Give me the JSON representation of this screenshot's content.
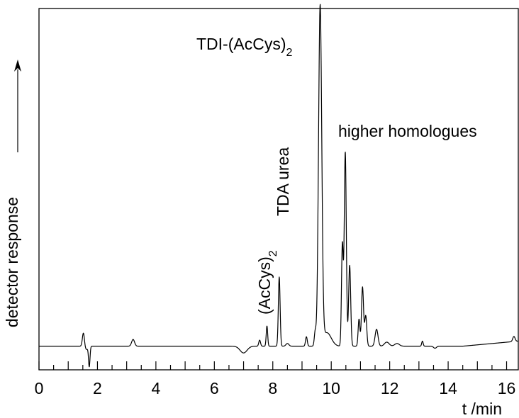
{
  "chart_data": {
    "type": "line",
    "title": "",
    "xlabel": "t /min",
    "ylabel": "detector response",
    "xlim": [
      0,
      16.4
    ],
    "ylim": [
      -0.07,
      1.0
    ],
    "xticks": [
      0,
      2,
      4,
      6,
      8,
      10,
      12,
      14,
      16
    ],
    "xtick_labels": [
      "0",
      "2",
      "4",
      "6",
      "8",
      "10",
      "12",
      "14",
      "16"
    ],
    "y_axis_values_shown": false,
    "grid": false,
    "annotations": [
      {
        "key": "tdi",
        "main": "TDI-(AcCys)",
        "sub": "2",
        "x": 9.62,
        "y": 0.96
      },
      {
        "key": "higher",
        "main": "higher homologues",
        "x": 10.5,
        "y": 0.62
      },
      {
        "key": "tda",
        "main": "TDA urea",
        "x": 8.22,
        "y": 0.41
      },
      {
        "key": "accys",
        "main": "(AcCys)",
        "sub": "2",
        "x": 7.8,
        "y": 0.06
      }
    ],
    "series": [
      {
        "baseline": 0.0,
        "color": "#000000",
        "peaks": [
          {
            "t": 1.52,
            "h": 0.04,
            "w": 0.035
          },
          {
            "t": 1.72,
            "h": -0.06,
            "w": 0.025
          },
          {
            "t": 1.62,
            "h": -0.01,
            "w": 0.05
          },
          {
            "t": 3.22,
            "h": 0.02,
            "w": 0.05
          },
          {
            "t": 7.0,
            "h": -0.02,
            "w": 0.12
          },
          {
            "t": 7.55,
            "h": 0.018,
            "w": 0.03
          },
          {
            "t": 7.8,
            "h": 0.06,
            "w": 0.025
          },
          {
            "t": 8.22,
            "h": 0.205,
            "w": 0.03
          },
          {
            "t": 8.5,
            "h": 0.008,
            "w": 0.05
          },
          {
            "t": 9.15,
            "h": 0.028,
            "w": 0.03
          },
          {
            "t": 9.45,
            "h": 0.04,
            "w": 0.03
          },
          {
            "t": 9.62,
            "h": 1.0,
            "w": 0.055
          },
          {
            "t": 9.85,
            "h": 0.04,
            "w": 0.15
          },
          {
            "t": 10.38,
            "h": 0.3,
            "w": 0.03
          },
          {
            "t": 10.48,
            "h": 0.575,
            "w": 0.035
          },
          {
            "t": 10.63,
            "h": 0.24,
            "w": 0.035
          },
          {
            "t": 10.95,
            "h": 0.08,
            "w": 0.03
          },
          {
            "t": 11.07,
            "h": 0.175,
            "w": 0.035
          },
          {
            "t": 11.18,
            "h": 0.09,
            "w": 0.035
          },
          {
            "t": 11.55,
            "h": 0.05,
            "w": 0.05
          },
          {
            "t": 11.9,
            "h": 0.012,
            "w": 0.08
          },
          {
            "t": 12.25,
            "h": 0.008,
            "w": 0.08
          },
          {
            "t": 13.12,
            "h": 0.015,
            "w": 0.025
          },
          {
            "t": 13.55,
            "h": -0.006,
            "w": 0.05
          },
          {
            "t": 16.25,
            "h": 0.015,
            "w": 0.04
          }
        ],
        "tail": {
          "start": 14.5,
          "end": 16.4,
          "rise": 0.015
        }
      }
    ]
  }
}
